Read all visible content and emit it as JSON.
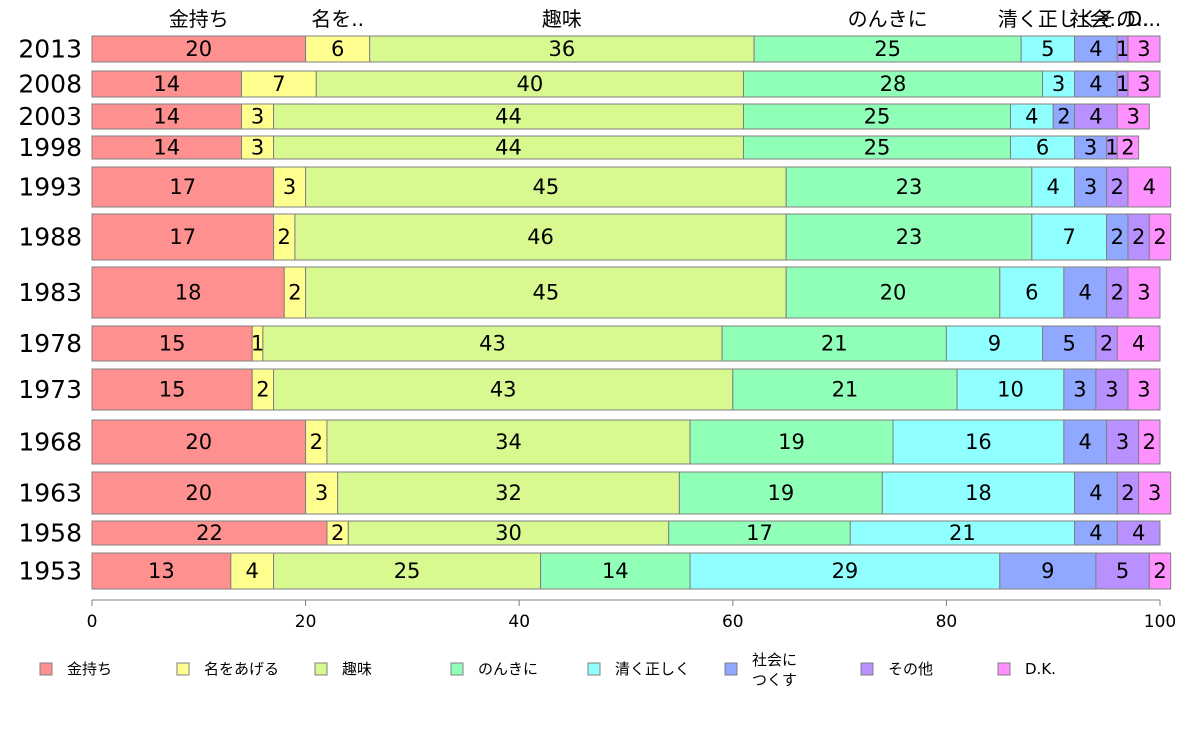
{
  "chart_data": {
    "type": "bar",
    "orientation": "horizontal",
    "stacked": true,
    "categories": [
      "2013",
      "2008",
      "2003",
      "1998",
      "1993",
      "1988",
      "1983",
      "1978",
      "1973",
      "1968",
      "1963",
      "1958",
      "1953"
    ],
    "series": [
      {
        "name": "金持ち",
        "color": "#ff9090",
        "values": [
          20,
          14,
          14,
          14,
          17,
          17,
          18,
          15,
          15,
          20,
          20,
          22,
          13
        ]
      },
      {
        "name": "名をあげる",
        "color": "#ffff90",
        "values": [
          6,
          7,
          3,
          3,
          3,
          2,
          2,
          1,
          2,
          2,
          3,
          2,
          4
        ]
      },
      {
        "name": "趣味",
        "color": "#d8f890",
        "values": [
          36,
          40,
          44,
          44,
          45,
          46,
          45,
          43,
          43,
          34,
          32,
          30,
          25
        ]
      },
      {
        "name": "のんきに",
        "color": "#90ffb8",
        "values": [
          25,
          28,
          25,
          25,
          23,
          23,
          20,
          21,
          21,
          19,
          19,
          17,
          14
        ]
      },
      {
        "name": "清く正しく",
        "color": "#90ffff",
        "values": [
          5,
          3,
          4,
          6,
          4,
          7,
          6,
          9,
          10,
          16,
          18,
          21,
          29
        ]
      },
      {
        "name": "社会に\nつくす",
        "color": "#90a8ff",
        "values": [
          4,
          4,
          2,
          3,
          3,
          2,
          4,
          5,
          3,
          4,
          4,
          4,
          9
        ]
      },
      {
        "name": "その他",
        "color": "#b890ff",
        "values": [
          1,
          1,
          4,
          1,
          2,
          2,
          2,
          2,
          3,
          3,
          2,
          4,
          5
        ]
      },
      {
        "name": "D.K.",
        "color": "#ff90ff",
        "values": [
          3,
          3,
          3,
          2,
          4,
          2,
          3,
          4,
          3,
          2,
          3,
          0,
          2
        ]
      }
    ],
    "top_labels": [
      "金持ち",
      "名を..",
      "趣味",
      "のんきに",
      "清く正しく",
      "社会..",
      "その..",
      "D..."
    ],
    "xlim": [
      0,
      100
    ],
    "xticks": [
      "0",
      "20",
      "40",
      "60",
      "80",
      "100"
    ],
    "grid": false,
    "legend_position": "bottom"
  }
}
